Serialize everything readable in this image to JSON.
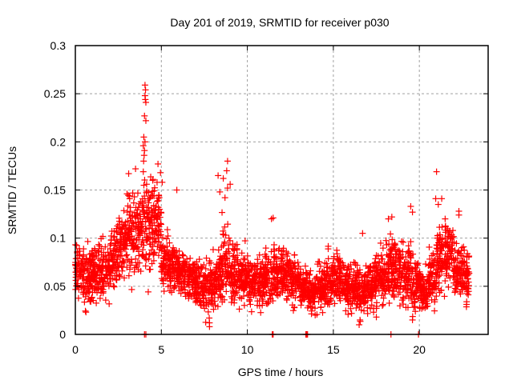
{
  "chart_data": {
    "type": "scatter",
    "title": "Day 201 of 2019, SRMTID for receiver p030",
    "xlabel": "GPS time / hours",
    "ylabel": "SRMTID / TECUs",
    "xlim": [
      0,
      24
    ],
    "ylim": [
      0,
      0.3
    ],
    "xticks": [
      0,
      5,
      10,
      15,
      20
    ],
    "xtick_labels": [
      "0",
      "5",
      "10",
      "15",
      "20"
    ],
    "yticks": [
      0,
      0.05,
      0.1,
      0.15,
      0.2,
      0.25,
      0.3
    ],
    "ytick_labels": [
      "0",
      "0.05",
      "0.1",
      "0.15",
      "0.2",
      "0.25",
      "0.3"
    ],
    "grid": true,
    "legend": "none",
    "marker": "plus",
    "series": [
      {
        "name": "SRMTID",
        "color": "#ff0000",
        "envelope_note": "Dense scatter summarized per time bin: center value, spread, point count",
        "bins": [
          {
            "t0": 0.0,
            "t1": 0.5,
            "center": 0.068,
            "spread": 0.018,
            "n": 70
          },
          {
            "t0": 0.5,
            "t1": 1.0,
            "center": 0.06,
            "spread": 0.02,
            "n": 70
          },
          {
            "t0": 1.0,
            "t1": 1.5,
            "center": 0.066,
            "spread": 0.02,
            "n": 70
          },
          {
            "t0": 1.5,
            "t1": 2.0,
            "center": 0.068,
            "spread": 0.018,
            "n": 70
          },
          {
            "t0": 2.0,
            "t1": 2.5,
            "center": 0.08,
            "spread": 0.022,
            "n": 70
          },
          {
            "t0": 2.5,
            "t1": 3.0,
            "center": 0.09,
            "spread": 0.022,
            "n": 70
          },
          {
            "t0": 3.0,
            "t1": 3.5,
            "center": 0.105,
            "spread": 0.025,
            "n": 70
          },
          {
            "t0": 3.5,
            "t1": 4.0,
            "center": 0.11,
            "spread": 0.028,
            "n": 70
          },
          {
            "t0": 4.0,
            "t1": 4.5,
            "center": 0.112,
            "spread": 0.028,
            "n": 70
          },
          {
            "t0": 4.5,
            "t1": 5.0,
            "center": 0.118,
            "spread": 0.025,
            "n": 70
          },
          {
            "t0": 5.0,
            "t1": 5.5,
            "center": 0.075,
            "spread": 0.015,
            "n": 70
          },
          {
            "t0": 5.5,
            "t1": 6.0,
            "center": 0.07,
            "spread": 0.014,
            "n": 70
          },
          {
            "t0": 6.0,
            "t1": 6.5,
            "center": 0.062,
            "spread": 0.014,
            "n": 70
          },
          {
            "t0": 6.5,
            "t1": 7.0,
            "center": 0.058,
            "spread": 0.014,
            "n": 70
          },
          {
            "t0": 7.0,
            "t1": 7.5,
            "center": 0.052,
            "spread": 0.015,
            "n": 70
          },
          {
            "t0": 7.5,
            "t1": 8.0,
            "center": 0.048,
            "spread": 0.016,
            "n": 70
          },
          {
            "t0": 8.0,
            "t1": 8.5,
            "center": 0.058,
            "spread": 0.018,
            "n": 70
          },
          {
            "t0": 8.5,
            "t1": 9.0,
            "center": 0.075,
            "spread": 0.022,
            "n": 70
          },
          {
            "t0": 9.0,
            "t1": 9.5,
            "center": 0.065,
            "spread": 0.02,
            "n": 70
          },
          {
            "t0": 9.5,
            "t1": 10.0,
            "center": 0.058,
            "spread": 0.016,
            "n": 70
          },
          {
            "t0": 10.0,
            "t1": 10.5,
            "center": 0.052,
            "spread": 0.015,
            "n": 70
          },
          {
            "t0": 10.5,
            "t1": 11.0,
            "center": 0.055,
            "spread": 0.016,
            "n": 70
          },
          {
            "t0": 11.0,
            "t1": 11.5,
            "center": 0.058,
            "spread": 0.017,
            "n": 70
          },
          {
            "t0": 11.5,
            "t1": 12.0,
            "center": 0.065,
            "spread": 0.018,
            "n": 70
          },
          {
            "t0": 12.0,
            "t1": 12.5,
            "center": 0.062,
            "spread": 0.016,
            "n": 70
          },
          {
            "t0": 12.5,
            "t1": 13.0,
            "center": 0.055,
            "spread": 0.015,
            "n": 70
          },
          {
            "t0": 13.0,
            "t1": 13.5,
            "center": 0.05,
            "spread": 0.014,
            "n": 70
          },
          {
            "t0": 13.5,
            "t1": 14.0,
            "center": 0.045,
            "spread": 0.013,
            "n": 70
          },
          {
            "t0": 14.0,
            "t1": 14.5,
            "center": 0.048,
            "spread": 0.014,
            "n": 70
          },
          {
            "t0": 14.5,
            "t1": 15.0,
            "center": 0.055,
            "spread": 0.016,
            "n": 70
          },
          {
            "t0": 15.0,
            "t1": 15.5,
            "center": 0.06,
            "spread": 0.017,
            "n": 70
          },
          {
            "t0": 15.5,
            "t1": 16.0,
            "center": 0.052,
            "spread": 0.016,
            "n": 70
          },
          {
            "t0": 16.0,
            "t1": 16.5,
            "center": 0.05,
            "spread": 0.015,
            "n": 70
          },
          {
            "t0": 16.5,
            "t1": 17.0,
            "center": 0.045,
            "spread": 0.015,
            "n": 70
          },
          {
            "t0": 17.0,
            "t1": 17.5,
            "center": 0.052,
            "spread": 0.016,
            "n": 70
          },
          {
            "t0": 17.5,
            "t1": 18.0,
            "center": 0.058,
            "spread": 0.017,
            "n": 70
          },
          {
            "t0": 18.0,
            "t1": 18.5,
            "center": 0.068,
            "spread": 0.02,
            "n": 70
          },
          {
            "t0": 18.5,
            "t1": 19.0,
            "center": 0.065,
            "spread": 0.02,
            "n": 70
          },
          {
            "t0": 19.0,
            "t1": 19.5,
            "center": 0.062,
            "spread": 0.02,
            "n": 70
          },
          {
            "t0": 19.5,
            "t1": 20.0,
            "center": 0.055,
            "spread": 0.018,
            "n": 70
          },
          {
            "t0": 20.0,
            "t1": 20.5,
            "center": 0.045,
            "spread": 0.015,
            "n": 70
          },
          {
            "t0": 20.5,
            "t1": 21.0,
            "center": 0.058,
            "spread": 0.018,
            "n": 70
          },
          {
            "t0": 21.0,
            "t1": 21.5,
            "center": 0.078,
            "spread": 0.02,
            "n": 70
          },
          {
            "t0": 21.5,
            "t1": 22.0,
            "center": 0.085,
            "spread": 0.018,
            "n": 70
          },
          {
            "t0": 22.0,
            "t1": 22.5,
            "center": 0.068,
            "spread": 0.018,
            "n": 70
          },
          {
            "t0": 22.5,
            "t1": 22.9,
            "center": 0.062,
            "spread": 0.016,
            "n": 60
          }
        ],
        "outliers": [
          {
            "x": 4.05,
            "y": 0.259
          },
          {
            "x": 4.08,
            "y": 0.254
          },
          {
            "x": 4.05,
            "y": 0.248
          },
          {
            "x": 4.07,
            "y": 0.244
          },
          {
            "x": 4.1,
            "y": 0.241
          },
          {
            "x": 4.02,
            "y": 0.227
          },
          {
            "x": 4.1,
            "y": 0.222
          },
          {
            "x": 3.98,
            "y": 0.205
          },
          {
            "x": 4.05,
            "y": 0.2
          },
          {
            "x": 3.95,
            "y": 0.196
          },
          {
            "x": 4.02,
            "y": 0.191
          },
          {
            "x": 4.0,
            "y": 0.186
          },
          {
            "x": 3.97,
            "y": 0.18
          },
          {
            "x": 3.5,
            "y": 0.172
          },
          {
            "x": 3.1,
            "y": 0.167
          },
          {
            "x": 3.95,
            "y": 0.169
          },
          {
            "x": 4.5,
            "y": 0.16
          },
          {
            "x": 4.95,
            "y": 0.168
          },
          {
            "x": 5.05,
            "y": 0.158
          },
          {
            "x": 8.85,
            "y": 0.18
          },
          {
            "x": 8.8,
            "y": 0.17
          },
          {
            "x": 8.6,
            "y": 0.162
          },
          {
            "x": 8.3,
            "y": 0.165
          },
          {
            "x": 9.0,
            "y": 0.156
          },
          {
            "x": 8.85,
            "y": 0.152
          },
          {
            "x": 8.4,
            "y": 0.148
          },
          {
            "x": 8.7,
            "y": 0.142
          },
          {
            "x": 5.9,
            "y": 0.15
          },
          {
            "x": 11.4,
            "y": 0.12
          },
          {
            "x": 11.5,
            "y": 0.121
          },
          {
            "x": 18.4,
            "y": 0.122
          },
          {
            "x": 18.2,
            "y": 0.12
          },
          {
            "x": 19.5,
            "y": 0.133
          },
          {
            "x": 19.6,
            "y": 0.127
          },
          {
            "x": 21.0,
            "y": 0.169
          },
          {
            "x": 20.95,
            "y": 0.141
          },
          {
            "x": 21.3,
            "y": 0.141
          },
          {
            "x": 21.1,
            "y": 0.135
          },
          {
            "x": 21.5,
            "y": 0.12
          },
          {
            "x": 22.3,
            "y": 0.128
          },
          {
            "x": 22.3,
            "y": 0.124
          },
          {
            "x": 16.7,
            "y": 0.105
          },
          {
            "x": 7.8,
            "y": 0.008
          },
          {
            "x": 7.8,
            "y": 0.012
          },
          {
            "x": 16.5,
            "y": 0.01
          },
          {
            "x": 16.55,
            "y": 0.015
          },
          {
            "x": 17.5,
            "y": 0.018
          },
          {
            "x": 19.6,
            "y": 0.015
          }
        ],
        "zero_points": [
          {
            "x": 4.02,
            "y": 0
          },
          {
            "x": 4.1,
            "y": 0
          },
          {
            "x": 11.45,
            "y": 0
          },
          {
            "x": 11.5,
            "y": 0
          },
          {
            "x": 13.4,
            "y": 0
          },
          {
            "x": 13.45,
            "y": 0
          },
          {
            "x": 13.5,
            "y": 0
          },
          {
            "x": 18.35,
            "y": 0
          },
          {
            "x": 19.95,
            "y": 0
          }
        ]
      }
    ]
  }
}
